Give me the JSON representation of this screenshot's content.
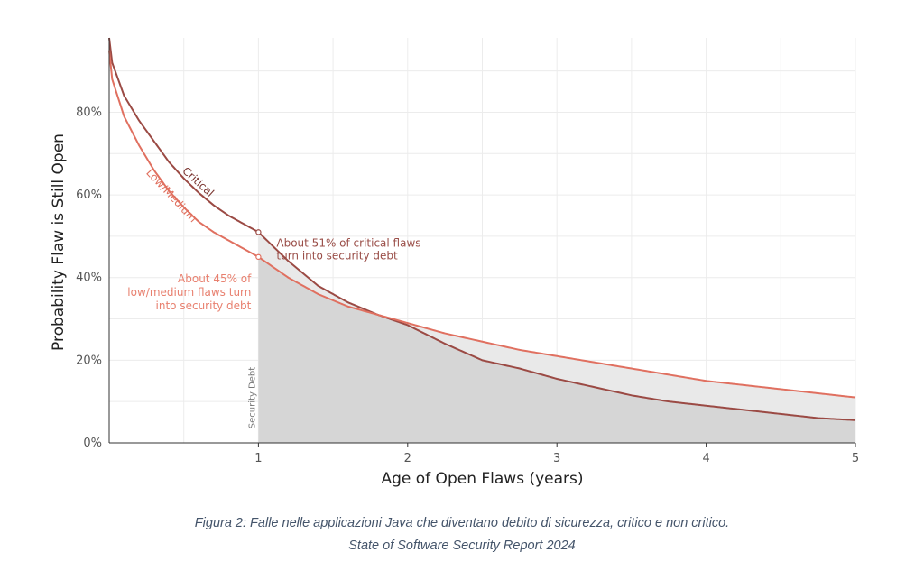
{
  "chart_data": {
    "type": "line",
    "title": "",
    "xlabel": "Age of Open Flaws (years)",
    "ylabel": "Probability Flaw is Still Open",
    "xlim": [
      0,
      5
    ],
    "ylim": [
      0,
      98
    ],
    "x_ticks": [
      1,
      2,
      3,
      4,
      5
    ],
    "x_tick_labels": [
      "1",
      "2",
      "3",
      "4",
      "5"
    ],
    "y_ticks": [
      0,
      20,
      40,
      60,
      80
    ],
    "y_tick_labels": [
      "0%",
      "20%",
      "40%",
      "60%",
      "80%"
    ],
    "grid": true,
    "series": [
      {
        "name": "Critical",
        "color": "#9b4a44",
        "x": [
          0,
          0.02,
          0.1,
          0.2,
          0.3,
          0.4,
          0.5,
          0.6,
          0.7,
          0.8,
          0.9,
          1.0,
          1.2,
          1.4,
          1.6,
          1.8,
          2.0,
          2.25,
          2.5,
          2.75,
          3.0,
          3.25,
          3.5,
          3.75,
          4.0,
          4.25,
          4.5,
          4.75,
          5.0
        ],
        "values": [
          98,
          92,
          84,
          78,
          73,
          68,
          64,
          60.5,
          57.5,
          55,
          53,
          51,
          44,
          38,
          34,
          31,
          28.5,
          24,
          20,
          18,
          15.5,
          13.5,
          11.5,
          10,
          9,
          8,
          7,
          6,
          5.5
        ]
      },
      {
        "name": "Low/Medium",
        "color": "#e07060",
        "x": [
          0,
          0.02,
          0.1,
          0.2,
          0.3,
          0.4,
          0.5,
          0.6,
          0.7,
          0.8,
          0.9,
          1.0,
          1.2,
          1.4,
          1.6,
          1.8,
          2.0,
          2.25,
          2.5,
          2.75,
          3.0,
          3.25,
          3.5,
          3.75,
          4.0,
          4.25,
          4.5,
          4.75,
          5.0
        ],
        "values": [
          95,
          88,
          79,
          72,
          66,
          61,
          57,
          53.5,
          51,
          49,
          47,
          45,
          40,
          36,
          33,
          31,
          29,
          26.5,
          24.5,
          22.5,
          21,
          19.5,
          18,
          16.5,
          15,
          14,
          13,
          12,
          11
        ]
      }
    ],
    "shaded_region": {
      "label": "Security Debt",
      "x_start": 1,
      "x_end": 5,
      "fill": "#d6d6d6",
      "between_fill": "#e9e9e9"
    },
    "annotations": [
      {
        "series": "Critical",
        "x": 1,
        "y": 51,
        "lines": [
          "About 51% of critical flaws",
          "turn into security debt"
        ]
      },
      {
        "series": "Low/Medium",
        "x": 1,
        "y": 45,
        "lines": [
          "About 45% of",
          "low/medium flaws turn",
          "into security debt"
        ]
      }
    ],
    "curve_labels": [
      {
        "series": "Critical",
        "text": "Critical"
      },
      {
        "series": "Low/Medium",
        "text": "Low/Medium"
      }
    ]
  },
  "caption": {
    "line1": "Figura 2: Falle nelle applicazioni Java che diventano debito di sicurezza, critico e non critico.",
    "line2": "State of Software Security Report 2024"
  }
}
